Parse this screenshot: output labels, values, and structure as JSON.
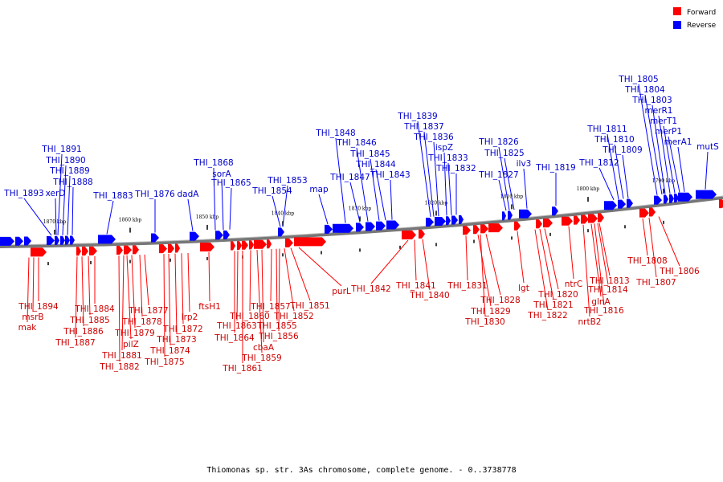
{
  "legend": {
    "forward_label": "Forward",
    "reverse_label": "Reverse",
    "forward_color": "#ff0000",
    "reverse_color": "#0000ff"
  },
  "caption": "Thiomonas sp. str. 3As chromosome, complete genome. - 0..3738778",
  "scale_labels": [
    "1870 kbp",
    "1860 kbp",
    "1850 kbp",
    "1840 kbp",
    "1830 kbp",
    "1820 kbp",
    "1810 kbp",
    "1800 kbp",
    "1790 kbp"
  ],
  "reverse_labels": [
    "THI_1893",
    "xerD",
    "THI_1891",
    "THI_1890",
    "THI_1889",
    "THI_1888",
    "THI_1883",
    "THI_1876",
    "dadA",
    "THI_1868",
    "sorA",
    "THI_1865",
    "THI_1854",
    "THI_1853",
    "map",
    "THI_1848",
    "THI_1847",
    "THI_1846",
    "THI_1845",
    "THI_1844",
    "THI_1843",
    "THI_1839",
    "THI_1837",
    "THI_1836",
    "ispZ",
    "THI_1833",
    "THI_1832",
    "THI_1827",
    "THI_1826",
    "THI_1825",
    "ilv3",
    "THI_1819",
    "THI_1812",
    "THI_1811",
    "THI_1810",
    "THI_1809",
    "THI_1805",
    "THI_1804",
    "THI_1803",
    "merR1",
    "merT1",
    "merP1",
    "merA1",
    "mutS"
  ],
  "forward_labels": [
    "THI_1894",
    "msrB",
    "mak",
    "THI_1884",
    "THI_1885",
    "THI_1886",
    "THI_1887",
    "THI_1877",
    "THI_1878",
    "THI_1879",
    "pilZ",
    "THI_1881",
    "THI_1882",
    "lrp2",
    "THI_1872",
    "THI_1873",
    "THI_1874",
    "THI_1875",
    "ftsH1",
    "THI_1860",
    "THI_1863",
    "THI_1864",
    "THI_1859",
    "THI_1861",
    "THI_1857",
    "THI_1855",
    "THI_1856",
    "cbaA",
    "THI_1852",
    "THI_1851",
    "purL",
    "THI_1842",
    "THI_1841",
    "THI_1840",
    "THI_1831",
    "THI_1828",
    "THI_1829",
    "THI_1830",
    "lgt",
    "THI_1820",
    "THI_1821",
    "THI_1822",
    "ntrC",
    "glnA",
    "THI_1816",
    "nrtB2",
    "THI_1813",
    "THI_1814",
    "THI_1808",
    "THI_1807",
    "THI_1806"
  ]
}
